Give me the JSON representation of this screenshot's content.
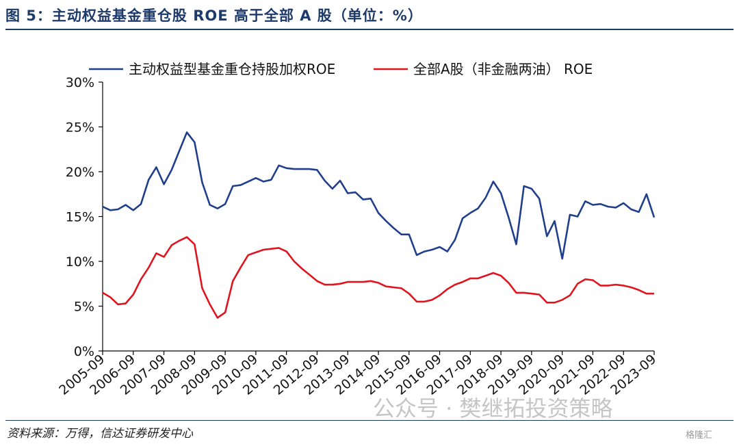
{
  "title": "图 5：主动权益基金重仓股 ROE 高于全部 A 股（单位：%）",
  "source": "资料来源：万得，信达证券研发中心",
  "watermark": "公众号 · 樊继拓投资策略",
  "logo_text": "格隆汇",
  "chart_data": {
    "type": "line",
    "title": "",
    "xlabel": "",
    "ylabel": "",
    "ylim": [
      0,
      30
    ],
    "yticks": [
      "0%",
      "5%",
      "10%",
      "15%",
      "20%",
      "25%",
      "30%"
    ],
    "grid": false,
    "legend_position": "top",
    "x_tick_labels": [
      "2005-09",
      "2006-09",
      "2007-09",
      "2008-09",
      "2009-09",
      "2010-09",
      "2011-09",
      "2012-09",
      "2013-09",
      "2014-09",
      "2015-09",
      "2016-09",
      "2017-09",
      "2018-09",
      "2019-09",
      "2020-09",
      "2021-09",
      "2022-09",
      "2023-09"
    ],
    "x": [
      "2005-09",
      "2005-12",
      "2006-03",
      "2006-06",
      "2006-09",
      "2006-12",
      "2007-03",
      "2007-06",
      "2007-09",
      "2007-12",
      "2008-03",
      "2008-06",
      "2008-09",
      "2008-12",
      "2009-03",
      "2009-06",
      "2009-09",
      "2009-12",
      "2010-03",
      "2010-06",
      "2010-09",
      "2010-12",
      "2011-03",
      "2011-06",
      "2011-09",
      "2011-12",
      "2012-03",
      "2012-06",
      "2012-09",
      "2012-12",
      "2013-03",
      "2013-06",
      "2013-09",
      "2013-12",
      "2014-03",
      "2014-06",
      "2014-09",
      "2014-12",
      "2015-03",
      "2015-06",
      "2015-09",
      "2015-12",
      "2016-03",
      "2016-06",
      "2016-09",
      "2016-12",
      "2017-03",
      "2017-06",
      "2017-09",
      "2017-12",
      "2018-03",
      "2018-06",
      "2018-09",
      "2018-12",
      "2019-03",
      "2019-06",
      "2019-09",
      "2019-12",
      "2020-03",
      "2020-06",
      "2020-09",
      "2020-12",
      "2021-03",
      "2021-06",
      "2021-09",
      "2021-12",
      "2022-03",
      "2022-06",
      "2022-09",
      "2022-12",
      "2023-03",
      "2023-06",
      "2023-09"
    ],
    "series": [
      {
        "name": "主动权益型基金重仓持股加权ROE",
        "color": "#1f3e8c",
        "values": [
          16.1,
          15.7,
          15.8,
          16.3,
          15.7,
          16.4,
          19.1,
          20.5,
          18.6,
          20.2,
          22.3,
          24.4,
          23.3,
          18.8,
          16.3,
          15.9,
          16.4,
          18.4,
          18.5,
          18.9,
          19.3,
          18.9,
          19.1,
          20.7,
          20.4,
          20.3,
          20.3,
          20.3,
          20.2,
          19.0,
          18.1,
          19.0,
          17.6,
          17.7,
          16.9,
          17.0,
          15.4,
          14.5,
          13.7,
          13.0,
          13.0,
          10.7,
          11.1,
          11.3,
          11.6,
          11.1,
          12.4,
          14.8,
          15.4,
          15.9,
          17.1,
          18.9,
          17.6,
          14.9,
          11.9,
          18.4,
          18.1,
          17.0,
          12.8,
          14.5,
          10.3,
          15.2,
          15.0,
          16.7,
          16.3,
          16.4,
          16.1,
          16.0,
          16.5,
          15.8,
          15.5,
          17.5,
          14.9
        ]
      },
      {
        "name": "全部A股（非金融两油） ROE",
        "color": "#e0141e",
        "values": [
          6.5,
          6.0,
          5.2,
          5.3,
          6.3,
          8.0,
          9.3,
          10.9,
          10.5,
          11.8,
          12.3,
          12.7,
          11.9,
          7.0,
          5.2,
          3.7,
          4.3,
          7.8,
          9.3,
          10.7,
          11.0,
          11.3,
          11.4,
          11.5,
          11.1,
          10.0,
          9.2,
          8.5,
          7.8,
          7.4,
          7.4,
          7.5,
          7.7,
          7.7,
          7.7,
          7.8,
          7.6,
          7.2,
          7.1,
          7.0,
          6.4,
          5.5,
          5.5,
          5.7,
          6.2,
          6.9,
          7.4,
          7.7,
          8.1,
          8.1,
          8.4,
          8.7,
          8.4,
          7.6,
          6.5,
          6.5,
          6.4,
          6.3,
          5.4,
          5.4,
          5.7,
          6.2,
          7.5,
          8.0,
          7.9,
          7.3,
          7.3,
          7.4,
          7.3,
          7.1,
          6.8,
          6.4,
          6.4
        ]
      }
    ]
  }
}
